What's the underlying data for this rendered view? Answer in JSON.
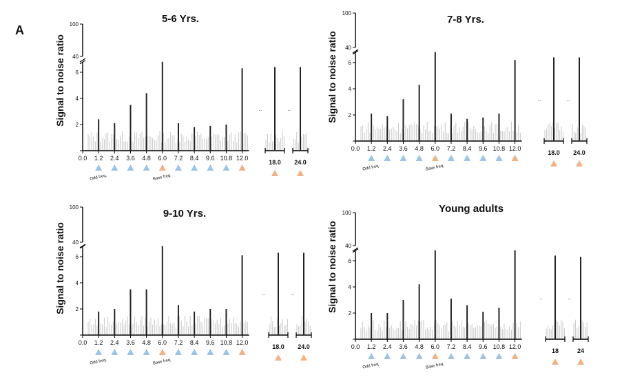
{
  "figure": {
    "panel_label": "A",
    "ylabel": "Signal to noise ratio",
    "annotations": {
      "odd": "Odd freq.",
      "base": "Base freq.",
      "ellipsis": "..."
    },
    "colors": {
      "odd_marker": "#9dc3e6",
      "base_marker": "#f4b183",
      "peak": "#222222",
      "noise": "#c8c8c8",
      "axis": "#000000"
    }
  },
  "chart_data": [
    {
      "type": "bar",
      "title": "5-6 Yrs.",
      "ylabel": "Signal to noise ratio",
      "y_upper_ticks": [
        "100",
        "40"
      ],
      "y_lower_ticks": [
        "0",
        "2",
        "4",
        "6"
      ],
      "ylim_lower": [
        0,
        6.2
      ],
      "x_ticks": [
        "0.0",
        "1.2",
        "2.4",
        "3.6",
        "4.8",
        "6.0",
        "7.2",
        "8.4",
        "9.6",
        "10.8",
        "12.0"
      ],
      "x_ticks_extra": [
        "18.0",
        "24.0"
      ],
      "x": [
        1.2,
        2.4,
        3.6,
        4.8,
        6.0,
        7.2,
        8.4,
        9.6,
        10.8,
        12.0,
        18.0,
        24.0
      ],
      "values": [
        2.4,
        2.1,
        3.5,
        4.4,
        46,
        2.1,
        1.8,
        1.9,
        2.0,
        6.3,
        6.4,
        6.4
      ],
      "markers": [
        "odd",
        "odd",
        "odd",
        "odd",
        "base",
        "odd",
        "odd",
        "odd",
        "odd",
        "base",
        "base",
        "base"
      ],
      "annotate": true
    },
    {
      "type": "bar",
      "title": "7-8 Yrs.",
      "ylabel": "Signal to noise ratio",
      "y_upper_ticks": [
        "100",
        "40"
      ],
      "y_lower_ticks": [
        "0",
        "2",
        "4",
        "6"
      ],
      "ylim_lower": [
        0,
        6.2
      ],
      "x_ticks": [
        "0.0",
        "1.2",
        "2.4",
        "3.6",
        "4.8",
        "6.0",
        "7.2",
        "8.4",
        "9.6",
        "10.8",
        "12.0"
      ],
      "x_ticks_extra": [
        "18.0",
        "24.0"
      ],
      "x": [
        1.2,
        2.4,
        3.6,
        4.8,
        6.0,
        7.2,
        8.4,
        9.6,
        10.8,
        12.0,
        18.0,
        24.0
      ],
      "values": [
        2.1,
        1.9,
        3.2,
        4.3,
        56,
        2.1,
        1.7,
        1.8,
        2.1,
        6.2,
        6.4,
        6.4
      ],
      "markers": [
        "odd",
        "odd",
        "odd",
        "odd",
        "base",
        "odd",
        "odd",
        "odd",
        "odd",
        "base",
        "base",
        "base"
      ],
      "annotate": true
    },
    {
      "type": "bar",
      "title": "9-10 Yrs.",
      "ylabel": "Signal to noise ratio",
      "y_upper_ticks": [
        "100",
        "40"
      ],
      "y_lower_ticks": [
        "0",
        "2",
        "4",
        "6"
      ],
      "ylim_lower": [
        0,
        6.2
      ],
      "x_ticks": [
        "0.0",
        "1.2",
        "2.4",
        "3.6",
        "4.8",
        "6.0",
        "7.2",
        "8.4",
        "9.6",
        "10.8",
        "12.0"
      ],
      "x_ticks_extra": [
        "18.0",
        "24.0"
      ],
      "x": [
        1.2,
        2.4,
        3.6,
        4.8,
        6.0,
        7.2,
        8.4,
        9.6,
        10.8,
        12.0,
        18.0,
        24.0
      ],
      "values": [
        1.8,
        2.0,
        3.5,
        3.5,
        45,
        2.3,
        1.8,
        2.0,
        2.0,
        6.1,
        6.3,
        6.3
      ],
      "markers": [
        "odd",
        "odd",
        "odd",
        "odd",
        "base",
        "odd",
        "odd",
        "odd",
        "odd",
        "base",
        "base",
        "base"
      ],
      "annotate": true
    },
    {
      "type": "bar",
      "title": "Young adults",
      "ylabel": "Signal to noise ratio",
      "y_upper_ticks": [
        "100",
        "40"
      ],
      "y_lower_ticks": [
        "0",
        "2",
        "4",
        "6"
      ],
      "ylim_lower": [
        0,
        6.2
      ],
      "x_ticks": [
        "0.0",
        "1.2",
        "2.4",
        "3.6",
        "4.8",
        "6.0",
        "7.2",
        "8.4",
        "9.6",
        "10.8",
        "12.0"
      ],
      "x_ticks_extra": [
        "18",
        "24"
      ],
      "x": [
        1.2,
        2.4,
        3.6,
        4.8,
        6.0,
        7.2,
        8.4,
        9.6,
        10.8,
        12.0,
        18,
        24
      ],
      "values": [
        2.0,
        2.0,
        3.0,
        4.2,
        56,
        3.1,
        2.6,
        2.1,
        2.4,
        54,
        6.4,
        6.3
      ],
      "markers": [
        "odd",
        "odd",
        "odd",
        "odd",
        "base",
        "odd",
        "odd",
        "odd",
        "odd",
        "base",
        "base",
        "base"
      ],
      "annotate": true
    }
  ]
}
